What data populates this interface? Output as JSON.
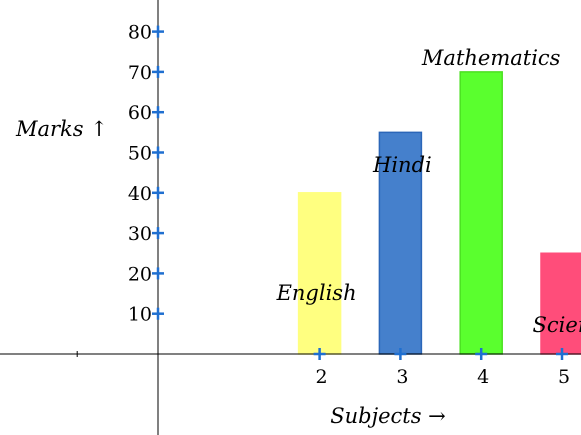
{
  "chart_data": {
    "type": "bar",
    "title": "",
    "xlabel": "Subjects →",
    "ylabel": "Marks ↑",
    "x_ticks": [
      2,
      3,
      4,
      5
    ],
    "y_ticks": [
      10,
      20,
      30,
      40,
      50,
      60,
      70,
      80
    ],
    "xlim": [
      -2,
      5.3
    ],
    "ylim": [
      -2,
      88
    ],
    "grid": false,
    "legend": "none",
    "bars": [
      {
        "name": "English",
        "x": 2,
        "value": 40,
        "color": "#ffff80"
      },
      {
        "name": "Hindi",
        "x": 3,
        "value": 55,
        "color": "#4580cc"
      },
      {
        "name": "Mathematics",
        "x": 4,
        "value": 70,
        "color": "#5aff2e"
      },
      {
        "name": "Science",
        "x": 5,
        "value": 25,
        "color": "#ff4d7a"
      }
    ],
    "tick_marker_color": "#1f6fd0"
  }
}
